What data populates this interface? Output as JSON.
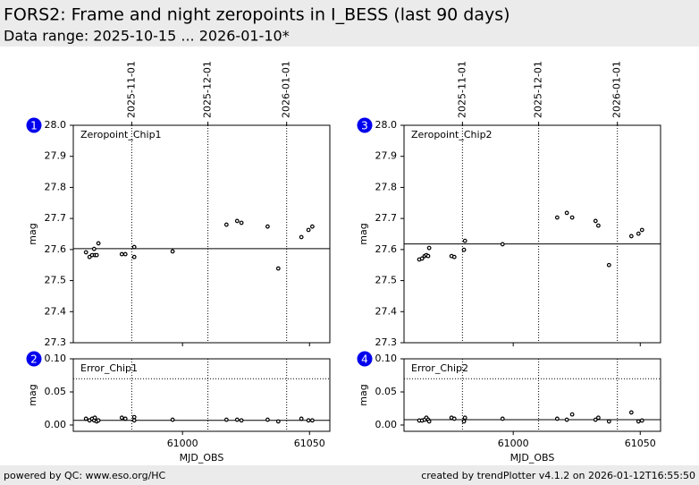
{
  "header": {
    "title": "FORS2: Frame and night zeropoints in I_BESS (last 90 days)",
    "subtitle": "Data range: 2025-10-15 ... 2026-01-10*"
  },
  "footer": {
    "left": "powered by QC: www.eso.org/HC",
    "right": "created by trendPlotter v4.1.2 on 2026-01-12T16:55:50"
  },
  "chart_data": [
    {
      "type": "scatter",
      "panel": "1",
      "ylabel": "mag",
      "x": [
        60962.0,
        60963.4,
        60964.4,
        60965.2,
        60965.5,
        60966.2,
        60966.9,
        60976.1,
        60977.5,
        60981.0,
        60981.0,
        60996.1,
        61017.3,
        61021.5,
        61023.2,
        61033.5,
        61037.7,
        61046.8,
        61049.6,
        61051.1
      ],
      "series": [
        {
          "name": "Zeropoint_Chip1",
          "color": "#000000",
          "values": [
            27.591,
            27.576,
            27.582,
            27.602,
            27.582,
            27.582,
            27.62,
            27.585,
            27.585,
            27.608,
            27.576,
            27.594,
            27.68,
            27.692,
            27.686,
            27.674,
            27.539,
            27.64,
            27.663,
            27.674
          ]
        }
      ],
      "xlim": [
        60957,
        61058
      ],
      "ylim": [
        27.3,
        28.0
      ],
      "yticks": [
        27.3,
        27.4,
        27.5,
        27.6,
        27.7,
        27.8,
        27.9,
        {
          "value": 28.0,
          "label": "28.0"
        }
      ],
      "date_ticks": [
        {
          "value": 60980,
          "label": "2025-11-01"
        },
        {
          "value": 61010,
          "label": "2025-12-01"
        },
        {
          "value": 61041,
          "label": "2026-01-01"
        }
      ],
      "reference_line": 27.603
    },
    {
      "type": "scatter",
      "panel": "2",
      "ylabel": "mag",
      "xlabel": "MJD_OBS",
      "x": [
        60962.0,
        60963.4,
        60964.4,
        60965.2,
        60965.5,
        60966.2,
        60966.9,
        60976.1,
        60977.5,
        60981.0,
        60981.0,
        60996.1,
        61017.3,
        61021.5,
        61023.2,
        61033.5,
        61037.7,
        61046.8,
        61049.6,
        61051.1
      ],
      "series": [
        {
          "name": "Error_Chip1",
          "color": "#000000",
          "values": [
            0.0095,
            0.007,
            0.0095,
            0.007,
            0.011,
            0.0054,
            0.007,
            0.011,
            0.0095,
            0.012,
            0.007,
            0.008,
            0.008,
            0.008,
            0.007,
            0.008,
            0.0054,
            0.0095,
            0.007,
            0.007
          ]
        }
      ],
      "xlim": [
        60957,
        61058
      ],
      "ylim": [
        -0.0095,
        0.1
      ],
      "xticks": [
        61000,
        61050
      ],
      "yticks": [
        {
          "value": 0.0,
          "label": "0.00"
        },
        {
          "value": 0.05,
          "label": "0.05"
        },
        {
          "value": 0.1,
          "label": "0.10"
        }
      ],
      "reference_line": 0.007,
      "threshold": 0.07
    },
    {
      "type": "scatter",
      "panel": "3",
      "ylabel": "mag",
      "x": [
        60963.0,
        60964.1,
        60965.1,
        60965.8,
        60966.5,
        60966.9,
        60975.7,
        60976.8,
        60980.6,
        60981.0,
        60995.8,
        61017.3,
        61021.1,
        61023.2,
        61032.4,
        61033.5,
        61037.7,
        61046.5,
        61049.3,
        61050.7
      ],
      "series": [
        {
          "name": "Zeropoint_Chip2",
          "color": "#000000",
          "values": [
            27.568,
            27.571,
            27.579,
            27.582,
            27.579,
            27.605,
            27.579,
            27.576,
            27.599,
            27.628,
            27.617,
            27.703,
            27.718,
            27.703,
            27.692,
            27.677,
            27.55,
            27.643,
            27.651,
            27.663
          ]
        }
      ],
      "xlim": [
        60957,
        61058
      ],
      "ylim": [
        27.3,
        28.0
      ],
      "yticks": [
        27.3,
        27.4,
        27.5,
        27.6,
        27.7,
        27.8,
        27.9,
        {
          "value": 28.0,
          "label": "28.0"
        }
      ],
      "date_ticks": [
        {
          "value": 60980,
          "label": "2025-11-01"
        },
        {
          "value": 61010,
          "label": "2025-12-01"
        },
        {
          "value": 61041,
          "label": "2026-01-01"
        }
      ],
      "reference_line": 27.618
    },
    {
      "type": "scatter",
      "panel": "4",
      "ylabel": "mag",
      "xlabel": "MJD_OBS",
      "x": [
        60963.0,
        60964.1,
        60965.1,
        60965.8,
        60966.5,
        60966.9,
        60975.7,
        60976.8,
        60980.6,
        60981.0,
        60995.8,
        61017.3,
        61021.1,
        61023.2,
        61032.4,
        61033.5,
        61037.7,
        61046.5,
        61049.3,
        61050.7
      ],
      "series": [
        {
          "name": "Error_Chip2",
          "color": "#000000",
          "values": [
            0.0068,
            0.0068,
            0.008,
            0.011,
            0.008,
            0.0054,
            0.011,
            0.0095,
            0.0054,
            0.011,
            0.0095,
            0.0095,
            0.008,
            0.016,
            0.008,
            0.011,
            0.0054,
            0.019,
            0.0054,
            0.0068
          ]
        }
      ],
      "xlim": [
        60957,
        61058
      ],
      "ylim": [
        -0.0095,
        0.1
      ],
      "xticks": [
        61000,
        61050
      ],
      "yticks": [
        {
          "value": 0.0,
          "label": "0.00"
        },
        {
          "value": 0.05,
          "label": "0.05"
        },
        {
          "value": 0.1,
          "label": "0.10"
        }
      ],
      "reference_line": 0.008,
      "threshold": 0.07
    }
  ]
}
